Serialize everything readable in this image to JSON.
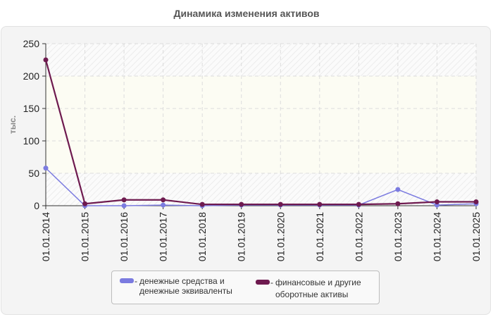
{
  "title": "Динамика изменения активов",
  "chart_data": {
    "type": "line",
    "title": "Динамика изменения активов",
    "xlabel": "",
    "ylabel": "тыс.",
    "ylim": [
      0,
      250
    ],
    "yticks": [
      0,
      50,
      100,
      150,
      200,
      250
    ],
    "grid": true,
    "legend_position": "bottom",
    "categories": [
      "01.01.2014",
      "01.01.2015",
      "01.01.2016",
      "01.01.2017",
      "01.01.2018",
      "01.01.2019",
      "01.01.2020",
      "01.01.2021",
      "01.01.2022",
      "01.01.2023",
      "01.01.2024",
      "01.01.2025"
    ],
    "series": [
      {
        "name": "денежные средства и денежные эквиваленты",
        "color": "#7b7be0",
        "values": [
          58,
          0,
          0,
          1,
          0,
          1,
          1,
          1,
          1,
          25,
          1,
          3
        ]
      },
      {
        "name": "финансовые и другие оборотные активы",
        "color": "#6e1a4f",
        "values": [
          225,
          3,
          9,
          9,
          2,
          2,
          2,
          2,
          2,
          3,
          6,
          6
        ]
      }
    ]
  },
  "legend": {
    "items": [
      {
        "dash": "-",
        "line1": "денежные средства и",
        "line2": "денежные эквиваленты",
        "color": "#7b7be0"
      },
      {
        "dash": "-",
        "line1": "финансовые и другие",
        "line2": "оборотные активы",
        "color": "#6e1a4f"
      }
    ]
  }
}
